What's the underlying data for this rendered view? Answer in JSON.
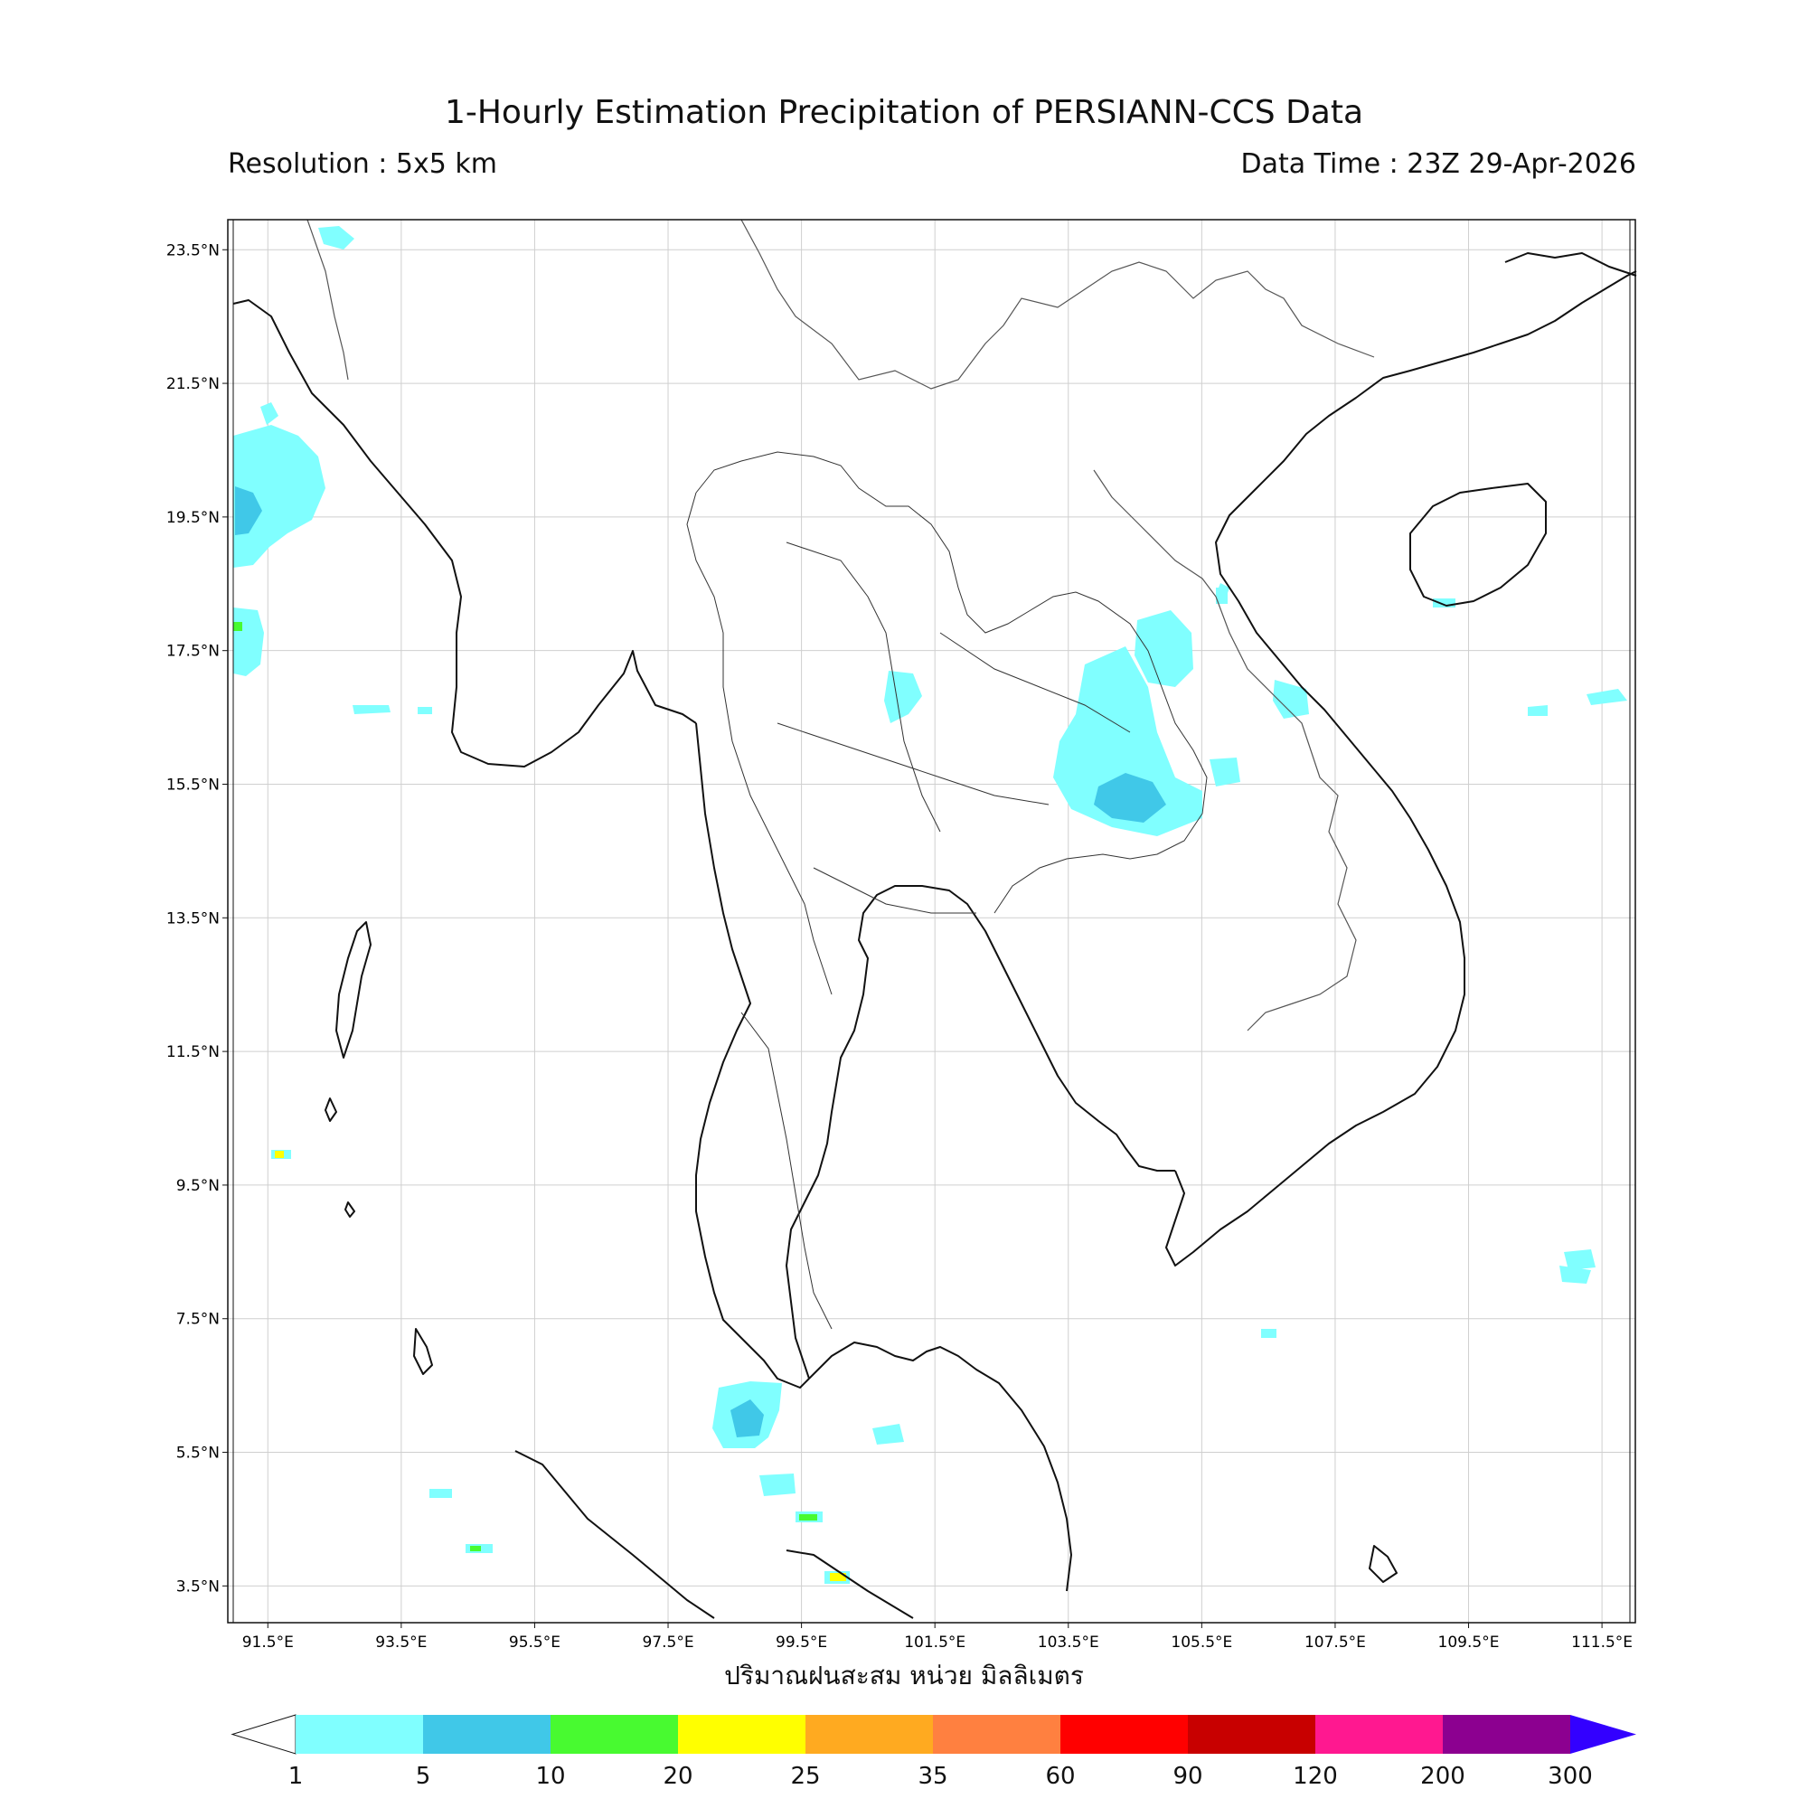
{
  "title": "1-Hourly Estimation Precipitation of PERSIANN-CCS Data",
  "resolution": "Resolution : 5x5 km",
  "data_time": "Data Time : 23Z 29-Apr-2026",
  "x_caption": "ปริมาณฝนสะสม หน่วย มิลลิเมตร",
  "map": {
    "lon_ticks": [
      "91.5°E",
      "93.5°E",
      "95.5°E",
      "97.5°E",
      "99.5°E",
      "101.5°E",
      "103.5°E",
      "105.5°E",
      "107.5°E",
      "109.5°E",
      "111.5°E"
    ],
    "lat_ticks": [
      "23.5°N",
      "21.5°N",
      "19.5°N",
      "17.5°N",
      "15.5°N",
      "13.5°N",
      "11.5°N",
      "9.5°N",
      "7.5°N",
      "5.5°N",
      "3.5°N"
    ],
    "lon_range": [
      90.9,
      112.0
    ],
    "lat_range": [
      2.95,
      23.95
    ]
  },
  "colorbar": {
    "levels": [
      "1",
      "5",
      "10",
      "20",
      "25",
      "35",
      "60",
      "90",
      "120",
      "200",
      "300"
    ],
    "colors": [
      "#80ffff",
      "#40c8e8",
      "#48fa30",
      "#ffff00",
      "#ffaa20",
      "#ff8040",
      "#ff0000",
      "#c80000",
      "#ff1890",
      "#8c0090"
    ],
    "extend_color": "#3300ff"
  }
}
